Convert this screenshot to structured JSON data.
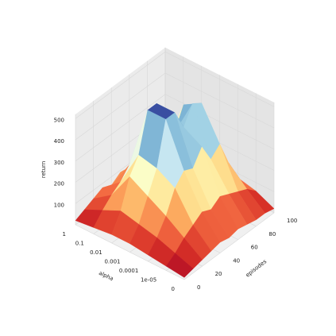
{
  "chart_data": {
    "type": "surface",
    "x_label": "alpha",
    "y_label": "episodes",
    "z_label": "return",
    "categories": [
      "1",
      "0.1",
      "0.01",
      "0.001",
      "0.0001",
      "1e-05",
      "0"
    ],
    "x": [
      0,
      10,
      20,
      30,
      40,
      50,
      60,
      70,
      80,
      90,
      100
    ],
    "xticks": [
      0,
      20,
      40,
      60,
      80,
      100
    ],
    "xlim": [
      0,
      100
    ],
    "zlim": [
      0,
      520
    ],
    "zticks": [
      100,
      200,
      300,
      400,
      500
    ],
    "colormap": [
      "#a50026",
      "#d73027",
      "#f46d43",
      "#fdae61",
      "#fee090",
      "#ffffbf",
      "#e0f3f8",
      "#abd9e9",
      "#74add1",
      "#4575b4",
      "#313695"
    ],
    "grid": true,
    "values": [
      [
        20,
        40,
        60,
        80,
        60,
        90,
        70,
        100,
        80,
        60,
        50
      ],
      [
        30,
        80,
        120,
        150,
        200,
        180,
        160,
        220,
        150,
        120,
        80
      ],
      [
        40,
        120,
        250,
        320,
        500,
        500,
        350,
        300,
        400,
        200,
        120
      ],
      [
        40,
        100,
        200,
        300,
        500,
        500,
        400,
        480,
        450,
        250,
        100
      ],
      [
        30,
        80,
        150,
        250,
        300,
        280,
        350,
        260,
        300,
        180,
        80
      ],
      [
        20,
        50,
        90,
        120,
        150,
        130,
        160,
        140,
        120,
        100,
        60
      ],
      [
        10,
        20,
        30,
        40,
        50,
        40,
        50,
        40,
        30,
        30,
        20
      ]
    ]
  }
}
